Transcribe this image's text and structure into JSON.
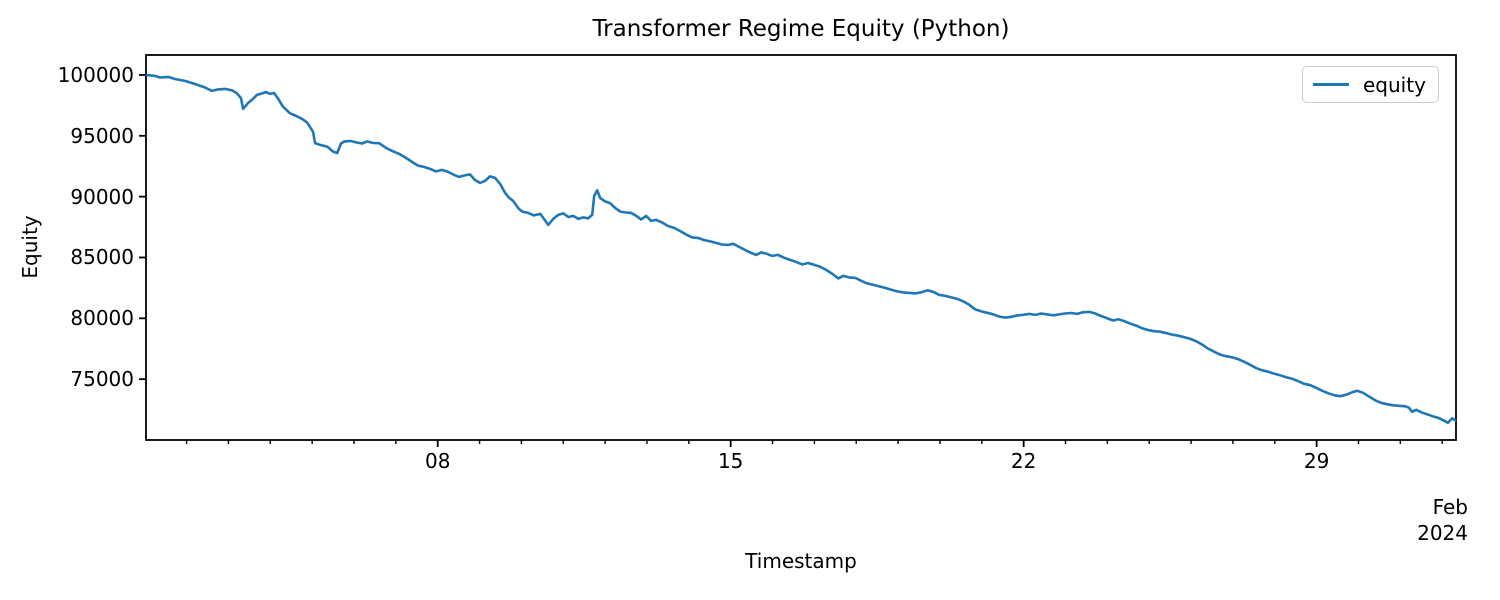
{
  "figure": {
    "title": "Transformer Regime Equity (Python)",
    "background": "#ffffff"
  },
  "style": {
    "line_color": "#1f77b4",
    "line_width": 2.6,
    "spine_color": "#000000",
    "tick_color": "#000000",
    "text_color": "#000000",
    "legend_border": "#cccccc"
  },
  "chart_data": {
    "type": "line",
    "title": "Transformer Regime Equity (Python)",
    "xlabel": "Timestamp",
    "ylabel": "Equity",
    "grid": false,
    "x_axis": {
      "unit": "day of February 2024 (values > 29 run into March)",
      "min": 1.03,
      "max": 32.33,
      "major_ticks": [
        {
          "day": 8,
          "label": "08"
        },
        {
          "day": 15,
          "label": "15"
        },
        {
          "day": 22,
          "label": "22"
        },
        {
          "day": 29,
          "label": "29"
        }
      ],
      "minor_tick_days": [
        2,
        3,
        4,
        5,
        6,
        7,
        9,
        10,
        11,
        12,
        13,
        14,
        16,
        17,
        18,
        19,
        20,
        21,
        23,
        24,
        25,
        26,
        27,
        28,
        30,
        31,
        32
      ],
      "offset_label_lines": [
        "Feb",
        "2024"
      ]
    },
    "y_axis": {
      "min": 70000,
      "max": 101640,
      "ticks": [
        {
          "value": 75000,
          "label": "75000"
        },
        {
          "value": 80000,
          "label": "80000"
        },
        {
          "value": 85000,
          "label": "85000"
        },
        {
          "value": 90000,
          "label": "90000"
        },
        {
          "value": 95000,
          "label": "95000"
        },
        {
          "value": 100000,
          "label": "100000"
        }
      ]
    },
    "legend": {
      "position": "upper right",
      "entries": [
        {
          "label": "equity",
          "color": "#1f77b4"
        }
      ]
    },
    "series": [
      {
        "name": "equity",
        "color": "#1f77b4",
        "points": [
          [
            1.05,
            100000
          ],
          [
            1.25,
            99920
          ],
          [
            1.36,
            99790
          ],
          [
            1.56,
            99840
          ],
          [
            1.72,
            99670
          ],
          [
            1.96,
            99510
          ],
          [
            2.2,
            99260
          ],
          [
            2.44,
            98970
          ],
          [
            2.61,
            98690
          ],
          [
            2.75,
            98810
          ],
          [
            2.92,
            98850
          ],
          [
            3.09,
            98730
          ],
          [
            3.2,
            98500
          ],
          [
            3.3,
            98100
          ],
          [
            3.35,
            97210
          ],
          [
            3.47,
            97700
          ],
          [
            3.56,
            97950
          ],
          [
            3.68,
            98360
          ],
          [
            3.8,
            98480
          ],
          [
            3.9,
            98600
          ],
          [
            3.99,
            98440
          ],
          [
            4.09,
            98520
          ],
          [
            4.19,
            98030
          ],
          [
            4.3,
            97400
          ],
          [
            4.47,
            96850
          ],
          [
            4.62,
            96630
          ],
          [
            4.76,
            96390
          ],
          [
            4.88,
            96100
          ],
          [
            4.97,
            95610
          ],
          [
            5.02,
            95340
          ],
          [
            5.07,
            94390
          ],
          [
            5.19,
            94250
          ],
          [
            5.36,
            94110
          ],
          [
            5.5,
            93700
          ],
          [
            5.6,
            93590
          ],
          [
            5.69,
            94370
          ],
          [
            5.76,
            94520
          ],
          [
            5.91,
            94580
          ],
          [
            6.05,
            94460
          ],
          [
            6.19,
            94370
          ],
          [
            6.31,
            94540
          ],
          [
            6.46,
            94410
          ],
          [
            6.6,
            94390
          ],
          [
            6.77,
            94000
          ],
          [
            6.91,
            93760
          ],
          [
            7.08,
            93510
          ],
          [
            7.24,
            93180
          ],
          [
            7.39,
            92850
          ],
          [
            7.53,
            92550
          ],
          [
            7.67,
            92440
          ],
          [
            7.82,
            92280
          ],
          [
            7.96,
            92070
          ],
          [
            8.1,
            92200
          ],
          [
            8.25,
            92030
          ],
          [
            8.39,
            91790
          ],
          [
            8.51,
            91620
          ],
          [
            8.63,
            91740
          ],
          [
            8.77,
            91830
          ],
          [
            8.89,
            91370
          ],
          [
            9.01,
            91130
          ],
          [
            9.13,
            91290
          ],
          [
            9.25,
            91660
          ],
          [
            9.37,
            91540
          ],
          [
            9.49,
            91050
          ],
          [
            9.61,
            90310
          ],
          [
            9.71,
            89900
          ],
          [
            9.8,
            89650
          ],
          [
            9.87,
            89320
          ],
          [
            9.94,
            88990
          ],
          [
            10.02,
            88770
          ],
          [
            10.16,
            88660
          ],
          [
            10.3,
            88460
          ],
          [
            10.45,
            88580
          ],
          [
            10.54,
            88170
          ],
          [
            10.64,
            87680
          ],
          [
            10.76,
            88170
          ],
          [
            10.88,
            88500
          ],
          [
            11.0,
            88620
          ],
          [
            11.12,
            88330
          ],
          [
            11.24,
            88420
          ],
          [
            11.36,
            88170
          ],
          [
            11.48,
            88290
          ],
          [
            11.59,
            88210
          ],
          [
            11.69,
            88500
          ],
          [
            11.74,
            90060
          ],
          [
            11.81,
            90510
          ],
          [
            11.88,
            89900
          ],
          [
            12.0,
            89610
          ],
          [
            12.12,
            89460
          ],
          [
            12.24,
            89070
          ],
          [
            12.36,
            88770
          ],
          [
            12.5,
            88700
          ],
          [
            12.62,
            88660
          ],
          [
            12.76,
            88380
          ],
          [
            12.86,
            88130
          ],
          [
            12.98,
            88420
          ],
          [
            13.1,
            88010
          ],
          [
            13.22,
            88090
          ],
          [
            13.36,
            87880
          ],
          [
            13.5,
            87590
          ],
          [
            13.65,
            87430
          ],
          [
            13.79,
            87180
          ],
          [
            13.93,
            86900
          ],
          [
            14.08,
            86650
          ],
          [
            14.22,
            86610
          ],
          [
            14.36,
            86440
          ],
          [
            14.51,
            86320
          ],
          [
            14.65,
            86200
          ],
          [
            14.79,
            86070
          ],
          [
            14.94,
            86030
          ],
          [
            15.06,
            86120
          ],
          [
            15.2,
            85870
          ],
          [
            15.34,
            85620
          ],
          [
            15.49,
            85380
          ],
          [
            15.61,
            85210
          ],
          [
            15.73,
            85420
          ],
          [
            15.87,
            85290
          ],
          [
            15.99,
            85130
          ],
          [
            16.13,
            85210
          ],
          [
            16.28,
            84970
          ],
          [
            16.42,
            84800
          ],
          [
            16.56,
            84640
          ],
          [
            16.71,
            84430
          ],
          [
            16.85,
            84550
          ],
          [
            17.0,
            84390
          ],
          [
            17.14,
            84230
          ],
          [
            17.28,
            83980
          ],
          [
            17.43,
            83650
          ],
          [
            17.57,
            83280
          ],
          [
            17.69,
            83490
          ],
          [
            17.83,
            83360
          ],
          [
            17.98,
            83320
          ],
          [
            18.12,
            83080
          ],
          [
            18.26,
            82870
          ],
          [
            18.41,
            82750
          ],
          [
            18.55,
            82620
          ],
          [
            18.69,
            82500
          ],
          [
            18.84,
            82340
          ],
          [
            18.98,
            82210
          ],
          [
            19.12,
            82130
          ],
          [
            19.27,
            82090
          ],
          [
            19.41,
            82050
          ],
          [
            19.55,
            82130
          ],
          [
            19.7,
            82300
          ],
          [
            19.84,
            82170
          ],
          [
            19.98,
            81930
          ],
          [
            20.13,
            81840
          ],
          [
            20.27,
            81720
          ],
          [
            20.41,
            81600
          ],
          [
            20.56,
            81390
          ],
          [
            20.7,
            81110
          ],
          [
            20.84,
            80740
          ],
          [
            20.99,
            80570
          ],
          [
            21.13,
            80450
          ],
          [
            21.27,
            80330
          ],
          [
            21.42,
            80140
          ],
          [
            21.56,
            80060
          ],
          [
            21.7,
            80120
          ],
          [
            21.85,
            80240
          ],
          [
            21.99,
            80290
          ],
          [
            22.13,
            80360
          ],
          [
            22.28,
            80280
          ],
          [
            22.42,
            80400
          ],
          [
            22.56,
            80320
          ],
          [
            22.71,
            80250
          ],
          [
            22.85,
            80320
          ],
          [
            22.99,
            80400
          ],
          [
            23.14,
            80440
          ],
          [
            23.28,
            80360
          ],
          [
            23.42,
            80500
          ],
          [
            23.57,
            80530
          ],
          [
            23.71,
            80400
          ],
          [
            23.85,
            80190
          ],
          [
            24.0,
            79990
          ],
          [
            24.14,
            79820
          ],
          [
            24.26,
            79930
          ],
          [
            24.4,
            79770
          ],
          [
            24.55,
            79560
          ],
          [
            24.69,
            79400
          ],
          [
            24.83,
            79190
          ],
          [
            24.98,
            79030
          ],
          [
            25.12,
            78940
          ],
          [
            25.26,
            78900
          ],
          [
            25.41,
            78780
          ],
          [
            25.55,
            78660
          ],
          [
            25.69,
            78570
          ],
          [
            25.84,
            78450
          ],
          [
            25.98,
            78320
          ],
          [
            26.12,
            78120
          ],
          [
            26.27,
            77830
          ],
          [
            26.41,
            77500
          ],
          [
            26.55,
            77260
          ],
          [
            26.7,
            77010
          ],
          [
            26.84,
            76890
          ],
          [
            26.98,
            76800
          ],
          [
            27.13,
            76640
          ],
          [
            27.27,
            76430
          ],
          [
            27.41,
            76190
          ],
          [
            27.56,
            75900
          ],
          [
            27.7,
            75730
          ],
          [
            27.84,
            75610
          ],
          [
            27.99,
            75450
          ],
          [
            28.13,
            75320
          ],
          [
            28.27,
            75160
          ],
          [
            28.42,
            75030
          ],
          [
            28.56,
            74830
          ],
          [
            28.7,
            74620
          ],
          [
            28.85,
            74500
          ],
          [
            28.99,
            74290
          ],
          [
            29.13,
            74050
          ],
          [
            29.28,
            73840
          ],
          [
            29.42,
            73680
          ],
          [
            29.56,
            73600
          ],
          [
            29.71,
            73720
          ],
          [
            29.85,
            73920
          ],
          [
            29.97,
            74040
          ],
          [
            30.11,
            73880
          ],
          [
            30.26,
            73550
          ],
          [
            30.4,
            73260
          ],
          [
            30.54,
            73060
          ],
          [
            30.69,
            72930
          ],
          [
            30.83,
            72850
          ],
          [
            30.97,
            72810
          ],
          [
            31.12,
            72770
          ],
          [
            31.21,
            72650
          ],
          [
            31.28,
            72320
          ],
          [
            31.38,
            72480
          ],
          [
            31.5,
            72280
          ],
          [
            31.64,
            72110
          ],
          [
            31.78,
            71950
          ],
          [
            31.93,
            71780
          ],
          [
            32.05,
            71580
          ],
          [
            32.14,
            71410
          ],
          [
            32.24,
            71780
          ],
          [
            32.31,
            71620
          ]
        ]
      }
    ]
  }
}
